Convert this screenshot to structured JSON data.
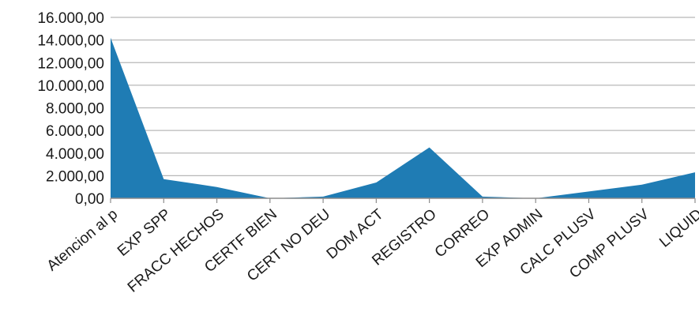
{
  "chart_data": {
    "type": "area",
    "title": "",
    "xlabel": "",
    "ylabel": "",
    "categories": [
      "Atencion al p",
      "EXP SPP",
      "FRACC HECHOS",
      "CERTF BIEN",
      "CERT NO DEU",
      "DOM  ACT",
      "REGISTRO",
      "CORREO",
      "EXP ADMIN",
      "CALC PLUSV",
      "COMP PLUSV",
      "LIQUID"
    ],
    "series": [
      {
        "values": [
          14200,
          1700,
          1000,
          0,
          150,
          1400,
          4500,
          150,
          0,
          600,
          1200,
          2300
        ]
      }
    ],
    "y_ticks": [
      "0,00",
      "2.000,00",
      "4.000,00",
      "6.000,00",
      "8.000,00",
      "10.000,00",
      "12.000,00",
      "14.000,00",
      "16.000,00"
    ],
    "ylim": [
      0,
      16000
    ],
    "grid": true,
    "legend": "none",
    "colors": {
      "fill": "#1f7cb4",
      "grid": "#b8b8b8",
      "axis": "#8c8c8c"
    }
  }
}
